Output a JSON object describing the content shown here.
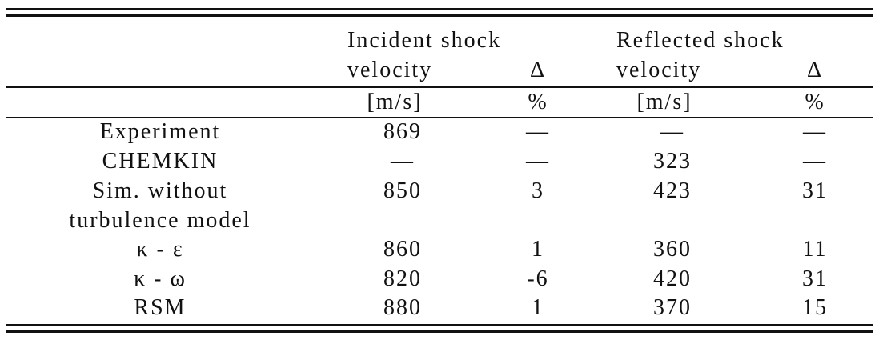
{
  "table": {
    "header": {
      "groups": [
        "Incident shock",
        "Reflected shock"
      ],
      "columns": [
        "velocity",
        "Δ",
        "velocity",
        "Δ"
      ],
      "units": [
        "[m/s]",
        "%",
        "[m/s]",
        "%"
      ]
    },
    "rows": [
      {
        "label": [
          "Experiment"
        ],
        "cells": [
          869,
          "—",
          "—",
          "—"
        ]
      },
      {
        "label": [
          "CHEMKIN"
        ],
        "cells": [
          "—",
          "—",
          323,
          "—"
        ]
      },
      {
        "label": [
          "Sim. without",
          "turbulence model"
        ],
        "cells": [
          850,
          3,
          423,
          31
        ]
      },
      {
        "label": [
          "κ - ε"
        ],
        "cells": [
          860,
          1,
          360,
          11
        ]
      },
      {
        "label": [
          "κ - ω"
        ],
        "cells": [
          820,
          -6,
          420,
          31
        ]
      },
      {
        "label": [
          "RSM"
        ],
        "cells": [
          880,
          1,
          370,
          15
        ]
      }
    ]
  }
}
